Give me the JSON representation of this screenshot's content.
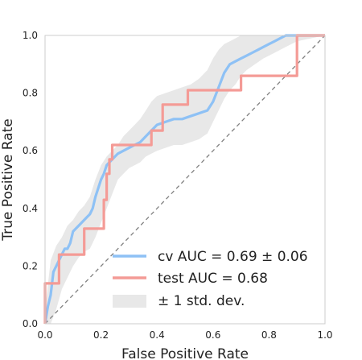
{
  "chart_data": {
    "type": "line",
    "title": "",
    "xlabel": "False Positive Rate",
    "ylabel": "True Positive Rate",
    "xlim": [
      0,
      1
    ],
    "ylim": [
      0,
      1
    ],
    "x_ticks": [
      "0.0",
      "0.2",
      "0.4",
      "0.6",
      "0.8",
      "1.0"
    ],
    "y_ticks": [
      "0.0",
      "0.2",
      "0.4",
      "0.6",
      "0.8",
      "1.0"
    ],
    "grid": false,
    "legend_position": "lower-right",
    "legend": [
      {
        "label": "cv AUC = 0.69 ± 0.06",
        "color": "#8ec1f5",
        "kind": "line"
      },
      {
        "label": "test AUC = 0.68",
        "color": "#f49b96",
        "kind": "line"
      },
      {
        "label": "± 1 std. dev.",
        "color": "#e8e8e8",
        "kind": "band"
      }
    ],
    "series": [
      {
        "name": "cv AUC = 0.69 ± 0.06",
        "color": "#8ec1f5",
        "x": [
          0.0,
          0.01,
          0.02,
          0.03,
          0.04,
          0.05,
          0.06,
          0.07,
          0.08,
          0.09,
          0.1,
          0.12,
          0.14,
          0.15,
          0.16,
          0.17,
          0.18,
          0.19,
          0.2,
          0.21,
          0.22,
          0.24,
          0.26,
          0.28,
          0.3,
          0.32,
          0.34,
          0.36,
          0.38,
          0.4,
          0.43,
          0.46,
          0.49,
          0.52,
          0.55,
          0.58,
          0.6,
          0.62,
          0.64,
          0.66,
          0.68,
          0.7,
          0.72,
          0.74,
          0.76,
          0.78,
          0.8,
          0.82,
          0.84,
          0.86,
          0.88,
          0.9,
          0.92,
          1.0
        ],
        "y": [
          0.0,
          0.06,
          0.1,
          0.18,
          0.2,
          0.22,
          0.24,
          0.26,
          0.26,
          0.28,
          0.32,
          0.34,
          0.36,
          0.37,
          0.38,
          0.4,
          0.44,
          0.47,
          0.5,
          0.52,
          0.55,
          0.57,
          0.59,
          0.6,
          0.61,
          0.62,
          0.63,
          0.65,
          0.67,
          0.69,
          0.7,
          0.71,
          0.71,
          0.72,
          0.73,
          0.74,
          0.77,
          0.82,
          0.87,
          0.9,
          0.91,
          0.92,
          0.93,
          0.94,
          0.95,
          0.96,
          0.97,
          0.98,
          0.99,
          1.0,
          1.0,
          1.0,
          1.0,
          1.0
        ]
      },
      {
        "name": "test AUC = 0.68",
        "color": "#f49b96",
        "x": [
          0.0,
          0.0,
          0.05,
          0.05,
          0.14,
          0.14,
          0.21,
          0.21,
          0.22,
          0.22,
          0.23,
          0.23,
          0.24,
          0.24,
          0.26,
          0.26,
          0.38,
          0.38,
          0.42,
          0.42,
          0.51,
          0.51,
          0.7,
          0.7,
          0.9,
          0.9,
          1.0
        ],
        "y": [
          0.0,
          0.14,
          0.14,
          0.24,
          0.24,
          0.33,
          0.33,
          0.43,
          0.43,
          0.52,
          0.52,
          0.57,
          0.57,
          0.62,
          0.62,
          0.62,
          0.62,
          0.67,
          0.67,
          0.76,
          0.76,
          0.81,
          0.81,
          0.86,
          0.86,
          1.0,
          1.0
        ]
      }
    ],
    "std_band": {
      "x": [
        0.0,
        0.02,
        0.04,
        0.06,
        0.08,
        0.1,
        0.12,
        0.14,
        0.16,
        0.18,
        0.2,
        0.22,
        0.24,
        0.26,
        0.28,
        0.3,
        0.32,
        0.34,
        0.36,
        0.38,
        0.4,
        0.43,
        0.46,
        0.49,
        0.52,
        0.55,
        0.58,
        0.6,
        0.62,
        0.64,
        0.66,
        0.68,
        0.7,
        0.72,
        0.75,
        0.78,
        0.82,
        0.86,
        0.9,
        0.95,
        1.0
      ],
      "upper": [
        0.05,
        0.22,
        0.27,
        0.3,
        0.34,
        0.36,
        0.39,
        0.41,
        0.44,
        0.5,
        0.55,
        0.58,
        0.6,
        0.62,
        0.65,
        0.67,
        0.69,
        0.71,
        0.74,
        0.77,
        0.79,
        0.8,
        0.81,
        0.82,
        0.83,
        0.85,
        0.88,
        0.92,
        0.95,
        0.97,
        0.98,
        0.99,
        1.0,
        1.0,
        1.0,
        1.0,
        1.0,
        1.0,
        1.0,
        1.0,
        1.0
      ],
      "lower": [
        0.0,
        0.0,
        0.05,
        0.12,
        0.16,
        0.2,
        0.23,
        0.25,
        0.26,
        0.3,
        0.35,
        0.4,
        0.45,
        0.5,
        0.52,
        0.54,
        0.55,
        0.56,
        0.58,
        0.59,
        0.6,
        0.61,
        0.62,
        0.62,
        0.63,
        0.64,
        0.66,
        0.7,
        0.74,
        0.78,
        0.81,
        0.83,
        0.86,
        0.88,
        0.9,
        0.92,
        0.94,
        0.96,
        0.98,
        0.99,
        1.0
      ]
    },
    "chance_line": {
      "x": [
        0,
        1
      ],
      "y": [
        0,
        1
      ],
      "color": "#808080",
      "style": "dashed"
    }
  }
}
